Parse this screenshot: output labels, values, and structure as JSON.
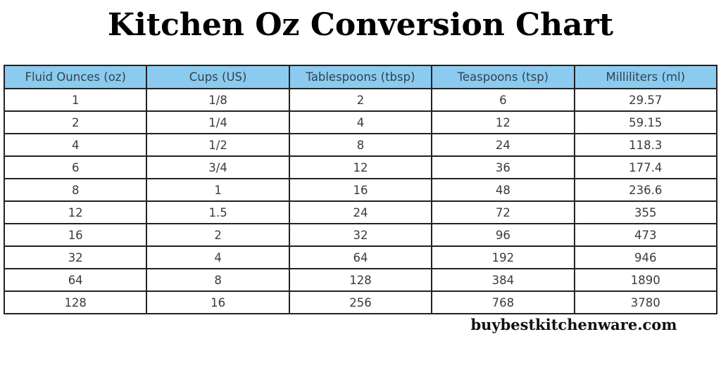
{
  "page": {
    "title": "Kitchen Oz Conversion Chart",
    "footer": "buybestkitchenware.com"
  },
  "colors": {
    "header_bg": "#8bcbf0",
    "border": "#222222",
    "header_text": "#33424e",
    "cell_text": "#3b3b3b",
    "title_text": "#000000"
  },
  "table": {
    "headers": [
      "Fluid Ounces (oz)",
      "Cups (US)",
      "Tablespoons (tbsp)",
      "Teaspoons (tsp)",
      "Milliliters (ml)"
    ],
    "rows": [
      [
        "1",
        "1/8",
        "2",
        "6",
        "29.57"
      ],
      [
        "2",
        "1/4",
        "4",
        "12",
        "59.15"
      ],
      [
        "4",
        "1/2",
        "8",
        "24",
        "118.3"
      ],
      [
        "6",
        "3/4",
        "12",
        "36",
        "177.4"
      ],
      [
        "8",
        "1",
        "16",
        "48",
        "236.6"
      ],
      [
        "12",
        "1.5",
        "24",
        "72",
        "355"
      ],
      [
        "16",
        "2",
        "32",
        "96",
        "473"
      ],
      [
        "32",
        "4",
        "64",
        "192",
        "946"
      ],
      [
        "64",
        "8",
        "128",
        "384",
        "1890"
      ],
      [
        "128",
        "16",
        "256",
        "768",
        "3780"
      ]
    ]
  },
  "chart_data": {
    "type": "table",
    "title": "Kitchen Oz Conversion Chart",
    "columns": [
      "Fluid Ounces (oz)",
      "Cups (US)",
      "Tablespoons (tbsp)",
      "Teaspoons (tsp)",
      "Milliliters (ml)"
    ],
    "rows": [
      [
        1,
        "1/8",
        2,
        6,
        29.57
      ],
      [
        2,
        "1/4",
        4,
        12,
        59.15
      ],
      [
        4,
        "1/2",
        8,
        24,
        118.3
      ],
      [
        6,
        "3/4",
        12,
        36,
        177.4
      ],
      [
        8,
        "1",
        16,
        48,
        236.6
      ],
      [
        12,
        "1.5",
        24,
        72,
        355
      ],
      [
        16,
        "2",
        32,
        96,
        473
      ],
      [
        32,
        "4",
        64,
        192,
        946
      ],
      [
        64,
        "8",
        128,
        384,
        1890
      ],
      [
        128,
        "16",
        256,
        768,
        3780
      ]
    ],
    "layout": {
      "header_fill": "#8bcbf0",
      "grid": true,
      "source_note": "buybestkitchenware.com"
    }
  }
}
